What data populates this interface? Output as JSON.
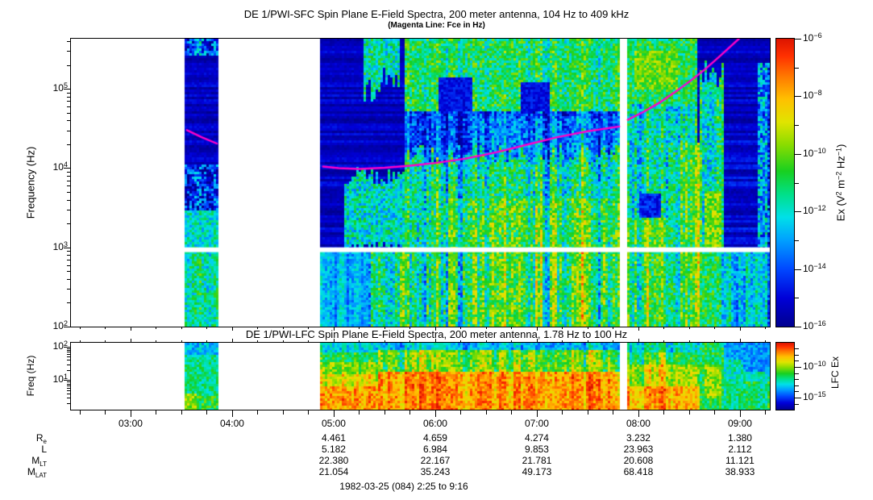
{
  "caption": "1982-03-25 (084) 2:25 to 9:16",
  "time_axis": {
    "tick_labels": [
      {
        "text": "03:00",
        "hour": 3
      },
      {
        "text": "04:00",
        "hour": 4
      },
      {
        "text": "05:00",
        "hour": 5
      },
      {
        "text": "06:00",
        "hour": 6
      },
      {
        "text": "07:00",
        "hour": 7
      },
      {
        "text": "08:00",
        "hour": 8
      },
      {
        "text": "09:00",
        "hour": 9
      }
    ],
    "minor_step_hours": 0.25,
    "start_hour": 2.413,
    "end_hour": 9.294
  },
  "ephemeris": {
    "row_labels": [
      {
        "main": "R",
        "sub": "e"
      },
      {
        "main": "L",
        "sub": ""
      },
      {
        "main": "M",
        "sub": "LT"
      },
      {
        "main": "M",
        "sub": "LAT"
      }
    ],
    "columns": [
      {
        "time": "05:00",
        "values": [
          "4.461",
          "5.182",
          "22.380",
          "21.054"
        ]
      },
      {
        "time": "06:00",
        "values": [
          "4.659",
          "6.984",
          "22.167",
          "35.243"
        ]
      },
      {
        "time": "07:00",
        "values": [
          "4.274",
          "9.853",
          "21.781",
          "49.173"
        ]
      },
      {
        "time": "08:00",
        "values": [
          "3.232",
          "23.963",
          "20.608",
          "68.418"
        ]
      },
      {
        "time": "09:00",
        "values": [
          "1.380",
          "2.112",
          "11.121",
          "38.933"
        ]
      }
    ]
  },
  "chart_data": [
    {
      "type": "heatmap",
      "name": "SFC spectrogram",
      "title": "DE 1/PWI-SFC  Spin Plane E-Field Spectra, 200 meter antenna, 104 Hz to 409 kHz",
      "subtitle": "(Magenta Line: Fce in Hz)",
      "ylabel": "Frequency (Hz)",
      "x_range_hours": [
        2.413,
        9.294
      ],
      "y_range_log10hz": [
        2.0,
        5.633
      ],
      "y_tick_labels": [
        {
          "text": "10|5|",
          "log": 5
        },
        {
          "text": "10|4|",
          "log": 4
        },
        {
          "text": "10|3|",
          "log": 3
        },
        {
          "text": "10|2|",
          "log": 2
        }
      ],
      "time_coverage_hours": [
        [
          3.54,
          3.855
        ],
        [
          4.885,
          7.812
        ],
        [
          7.895,
          9.294
        ]
      ],
      "white_band_log10hz": [
        2.94,
        3.0
      ],
      "colorbar": {
        "label": "Ex (V|2| m|-2| Hz|-1|)",
        "range_exponents": [
          -6,
          -16
        ],
        "labeled_ticks": [
          {
            "text": "10|-6|",
            "exp": -6
          },
          {
            "text": "10|-8|",
            "exp": -8
          },
          {
            "text": "10|-10|",
            "exp": -10
          },
          {
            "text": "10|-12|",
            "exp": -12
          },
          {
            "text": "10|-14|",
            "exp": -14
          },
          {
            "text": "10|-16|",
            "exp": -16
          }
        ],
        "minor_exponents": [
          -7,
          -9,
          -11,
          -13,
          -15
        ]
      },
      "colormap": [
        [
          0.0,
          "#00008F"
        ],
        [
          0.1,
          "#0000D8"
        ],
        [
          0.2,
          "#0048FF"
        ],
        [
          0.3,
          "#00A0FF"
        ],
        [
          0.38,
          "#00E0E8"
        ],
        [
          0.46,
          "#00E088"
        ],
        [
          0.54,
          "#18D020"
        ],
        [
          0.63,
          "#88DC00"
        ],
        [
          0.71,
          "#E0E400"
        ],
        [
          0.79,
          "#FFC000"
        ],
        [
          0.87,
          "#FF7800"
        ],
        [
          0.94,
          "#FF3000"
        ],
        [
          1.0,
          "#DC1400"
        ]
      ],
      "fce_line_color": "#FF00C8",
      "fce_line_log10hz": [
        [
          [
            3.555,
            4.48
          ],
          [
            3.7,
            4.39
          ],
          [
            3.85,
            4.31
          ]
        ],
        [
          [
            4.895,
            4.02
          ],
          [
            5.05,
            4.0
          ],
          [
            5.25,
            3.99
          ],
          [
            5.5,
            4.005
          ],
          [
            5.75,
            4.03
          ],
          [
            6.0,
            4.065
          ],
          [
            6.3,
            4.12
          ],
          [
            6.6,
            4.2
          ],
          [
            6.9,
            4.295
          ],
          [
            7.2,
            4.39
          ],
          [
            7.5,
            4.465
          ],
          [
            7.812,
            4.525
          ]
        ],
        [
          [
            7.895,
            4.61
          ],
          [
            8.05,
            4.71
          ],
          [
            8.2,
            4.82
          ],
          [
            8.35,
            4.95
          ],
          [
            8.5,
            5.09
          ],
          [
            8.65,
            5.24
          ],
          [
            8.8,
            5.41
          ],
          [
            8.99,
            5.633
          ]
        ]
      ],
      "regions": [
        {
          "t": [
            3.54,
            3.855
          ],
          "f": [
            3.44,
            5.633
          ],
          "base": 0.07,
          "noise": 0.03,
          "hstripe": 0.055
        },
        {
          "t": [
            3.54,
            3.855
          ],
          "f": [
            5.43,
            5.633
          ],
          "base": 0.26,
          "noise": 0.2,
          "vstreak": 0.15
        },
        {
          "t": [
            3.54,
            3.855
          ],
          "f": [
            3.44,
            4.02
          ],
          "base": 0.17,
          "noise": 0.22,
          "vstreak": 0.1
        },
        {
          "t": [
            3.54,
            3.855
          ],
          "f": [
            3.0,
            3.44
          ],
          "base": 0.4,
          "noise": 0.12
        },
        {
          "t": [
            3.54,
            3.855
          ],
          "f": [
            2.0,
            2.99
          ],
          "base": 0.46,
          "noise": 0.13,
          "vstreak": 0.08
        },
        {
          "t": [
            4.885,
            7.812
          ],
          "f": [
            2.94,
            5.633
          ],
          "base": 0.07,
          "noise": 0.025,
          "hstripe": 0.055
        },
        {
          "t": [
            4.885,
            7.812
          ],
          "f": [
            2.0,
            2.94
          ],
          "base": 0.33,
          "noise": 0.08,
          "vstreak": 0.1
        },
        {
          "t": [
            5.72,
            7.812
          ],
          "f": [
            4.7,
            4.78
          ],
          "base": 0.3,
          "noise": 0.06
        },
        {
          "t": [
            5.3,
            5.47
          ],
          "f": [
            5.15,
            5.633
          ],
          "base": 0.45,
          "noise": 0.15,
          "jb": 0.35
        },
        {
          "t": [
            5.49,
            5.63
          ],
          "f": [
            5.3,
            5.633
          ],
          "base": 0.42,
          "noise": 0.15,
          "jb": 0.3
        },
        {
          "t": [
            5.72,
            7.812
          ],
          "f": [
            4.72,
            5.633
          ],
          "base": 0.5,
          "noise": 0.14,
          "vstreak": 0.1,
          "jb": 0.28
        },
        {
          "t": [
            6.05,
            6.35
          ],
          "f": [
            4.72,
            5.12
          ],
          "base": 0.12,
          "noise": 0.06,
          "jb": 0.2
        },
        {
          "t": [
            6.85,
            7.12
          ],
          "f": [
            4.72,
            5.08
          ],
          "base": 0.12,
          "noise": 0.06,
          "jb": 0.2
        },
        {
          "t": [
            5.72,
            7.812
          ],
          "f": [
            3.98,
            4.7
          ],
          "base": 0.2,
          "noise": 0.13,
          "vstreak": 0.18
        },
        {
          "t": [
            6.35,
            7.812
          ],
          "f": [
            4.0,
            4.62
          ],
          "base": 0.26,
          "noise": 0.13,
          "vstreak": 0.18
        },
        {
          "t": [
            5.12,
            5.72
          ],
          "f": [
            3.08,
            3.75
          ],
          "base": 0.4,
          "noise": 0.15,
          "jt": 0.25,
          "jb": 0.15
        },
        {
          "t": [
            5.72,
            7.812
          ],
          "f": [
            2.94,
            4.0
          ],
          "base": 0.45,
          "noise": 0.15,
          "vstreak": 0.22,
          "jt": 0.3
        },
        {
          "t": [
            6.1,
            7.812
          ],
          "f": [
            2.94,
            3.6
          ],
          "base": 0.55,
          "noise": 0.15,
          "vstreak": 0.22
        },
        {
          "t": [
            5.35,
            7.812
          ],
          "f": [
            2.0,
            2.94
          ],
          "base": 0.46,
          "noise": 0.14,
          "vstreak": 0.28
        },
        {
          "t": [
            6.1,
            7.75
          ],
          "f": [
            2.0,
            2.94
          ],
          "base": 0.55,
          "noise": 0.14,
          "vstreak": 0.28
        },
        {
          "t": [
            7.895,
            9.294
          ],
          "f": [
            2.94,
            5.633
          ],
          "base": 0.07,
          "noise": 0.025,
          "hstripe": 0.055
        },
        {
          "t": [
            7.895,
            9.294
          ],
          "f": [
            2.0,
            2.94
          ],
          "base": 0.32,
          "noise": 0.1,
          "vstreak": 0.12
        },
        {
          "t": [
            7.895,
            9.1
          ],
          "f": [
            4.7,
            4.78
          ],
          "base": 0.3,
          "noise": 0.06
        },
        {
          "t": [
            7.895,
            8.6
          ],
          "f": [
            4.8,
            5.633
          ],
          "base": 0.5,
          "noise": 0.13,
          "jb": 0.25
        },
        {
          "t": [
            7.97,
            8.38
          ],
          "f": [
            5.02,
            5.45
          ],
          "base": 0.6,
          "noise": 0.1
        },
        {
          "t": [
            7.895,
            8.6
          ],
          "f": [
            3.35,
            4.8
          ],
          "base": 0.44,
          "noise": 0.15,
          "vstreak": 0.15
        },
        {
          "t": [
            8.02,
            8.2
          ],
          "f": [
            2.95,
            3.65
          ],
          "base": 0.14,
          "noise": 0.08
        },
        {
          "t": [
            7.895,
            8.6
          ],
          "f": [
            2.94,
            3.35
          ],
          "base": 0.58,
          "noise": 0.13,
          "vstreak": 0.18
        },
        {
          "t": [
            8.3,
            8.62
          ],
          "f": [
            2.94,
            4.3
          ],
          "base": 0.55,
          "noise": 0.14,
          "vstreak": 0.18
        },
        {
          "t": [
            7.895,
            8.6
          ],
          "f": [
            2.0,
            2.94
          ],
          "base": 0.55,
          "noise": 0.14,
          "vstreak": 0.22
        },
        {
          "t": [
            8.6,
            9.294
          ],
          "f": [
            4.35,
            5.633
          ],
          "base": 0.07,
          "noise": 0.025,
          "hstripe": 0.06
        },
        {
          "t": [
            8.82,
            9.294
          ],
          "f": [
            2.94,
            4.35
          ],
          "base": 0.09,
          "noise": 0.03,
          "hstripe": 0.07
        },
        {
          "t": [
            8.62,
            8.82
          ],
          "f": [
            2.94,
            5.0
          ],
          "base": 0.46,
          "noise": 0.15,
          "vstreak": 0.12,
          "jt": 0.35
        },
        {
          "t": [
            8.66,
            8.8
          ],
          "f": [
            2.94,
            3.7
          ],
          "base": 0.62,
          "noise": 0.12
        },
        {
          "t": [
            8.62,
            8.82
          ],
          "f": [
            2.0,
            2.94
          ],
          "base": 0.5,
          "noise": 0.13
        },
        {
          "t": [
            8.82,
            9.294
          ],
          "f": [
            2.0,
            2.94
          ],
          "base": 0.3,
          "noise": 0.12,
          "vstreak": 0.15
        },
        {
          "t": [
            9.19,
            9.294
          ],
          "f": [
            2.94,
            5.3
          ],
          "base": 0.24,
          "noise": 0.2,
          "vstreak": 0.12
        }
      ]
    },
    {
      "type": "heatmap",
      "name": "LFC spectrogram",
      "title": "DE 1/PWI-LFC  Spin Plane E-Field Spectra, 200 meter antenna, 1.78 Hz to 100 Hz",
      "ylabel": "Freq (Hz)",
      "x_range_hours": [
        2.413,
        9.294
      ],
      "y_range_log10hz": [
        0.12,
        2.12
      ],
      "y_tick_labels": [
        {
          "text": "10|2|",
          "log": 2
        },
        {
          "text": "10|1|",
          "log": 1
        }
      ],
      "time_coverage_hours": [
        [
          3.54,
          3.855
        ],
        [
          4.885,
          7.812
        ],
        [
          7.895,
          9.294
        ]
      ],
      "colorbar": {
        "label": "LFC Ex",
        "labeled_ticks": [
          {
            "text": "10|-10|",
            "exp": -10
          },
          {
            "text": "10|-15|",
            "exp": -15
          }
        ],
        "minor_exponents": [
          -7,
          -8,
          -9,
          -11,
          -12,
          -13,
          -14,
          -16
        ]
      },
      "regions": [
        {
          "t": [
            3.54,
            3.855
          ],
          "f": [
            0.12,
            2.12
          ],
          "base": 0.46,
          "noise": 0.1
        },
        {
          "t": [
            3.54,
            3.855
          ],
          "f": [
            1.78,
            2.12
          ],
          "base": 0.34,
          "noise": 0.1
        },
        {
          "t": [
            3.54,
            3.855
          ],
          "f": [
            0.12,
            0.5
          ],
          "base": 0.52,
          "noise": 0.12
        },
        {
          "t": [
            3.555,
            3.63
          ],
          "f": [
            0.12,
            0.55
          ],
          "base": 0.64,
          "noise": 0.1
        },
        {
          "t": [
            4.885,
            7.812
          ],
          "f": [
            1.78,
            2.12
          ],
          "base": 0.34,
          "noise": 0.09,
          "vstreak": 0.12
        },
        {
          "t": [
            4.885,
            7.812
          ],
          "f": [
            1.5,
            1.78
          ],
          "base": 0.47,
          "noise": 0.1,
          "vstreak": 0.15
        },
        {
          "t": [
            4.885,
            7.812
          ],
          "f": [
            1.15,
            1.5
          ],
          "base": 0.58,
          "noise": 0.1,
          "vstreak": 0.16
        },
        {
          "t": [
            4.885,
            7.812
          ],
          "f": [
            0.75,
            1.15
          ],
          "base": 0.68,
          "noise": 0.1,
          "vstreak": 0.16
        },
        {
          "t": [
            4.885,
            7.812
          ],
          "f": [
            0.12,
            0.75
          ],
          "base": 0.8,
          "noise": 0.1,
          "vstreak": 0.12
        },
        {
          "t": [
            5.45,
            7.812
          ],
          "f": [
            0.12,
            1.3
          ],
          "base": 0.84,
          "noise": 0.09,
          "vstreak": 0.12
        },
        {
          "t": [
            5.45,
            7.812
          ],
          "f": [
            1.3,
            1.9
          ],
          "base": 0.6,
          "noise": 0.12,
          "vstreak": 0.2
        },
        {
          "t": [
            7.895,
            8.62
          ],
          "f": [
            1.78,
            2.12
          ],
          "base": 0.42,
          "noise": 0.1,
          "vstreak": 0.15
        },
        {
          "t": [
            7.895,
            8.62
          ],
          "f": [
            1.4,
            1.78
          ],
          "base": 0.55,
          "noise": 0.1,
          "vstreak": 0.18
        },
        {
          "t": [
            7.895,
            8.62
          ],
          "f": [
            0.8,
            1.4
          ],
          "base": 0.68,
          "noise": 0.1,
          "vstreak": 0.16
        },
        {
          "t": [
            7.895,
            8.62
          ],
          "f": [
            0.12,
            0.8
          ],
          "base": 0.82,
          "noise": 0.09,
          "vstreak": 0.1
        },
        {
          "t": [
            8.62,
            8.85
          ],
          "f": [
            0.12,
            2.12
          ],
          "base": 0.5,
          "noise": 0.12
        },
        {
          "t": [
            8.66,
            8.8
          ],
          "f": [
            0.5,
            1.4
          ],
          "base": 0.64,
          "noise": 0.1
        },
        {
          "t": [
            8.85,
            9.294
          ],
          "f": [
            1.55,
            2.12
          ],
          "base": 0.3,
          "noise": 0.09
        },
        {
          "t": [
            8.85,
            9.294
          ],
          "f": [
            0.9,
            1.55
          ],
          "base": 0.42,
          "noise": 0.1
        },
        {
          "t": [
            8.85,
            9.294
          ],
          "f": [
            0.12,
            0.9
          ],
          "base": 0.5,
          "noise": 0.1,
          "vstreak": 0.1
        },
        {
          "t": [
            9.05,
            9.294
          ],
          "f": [
            1.3,
            2.12
          ],
          "base": 0.28,
          "noise": 0.08
        }
      ]
    }
  ]
}
